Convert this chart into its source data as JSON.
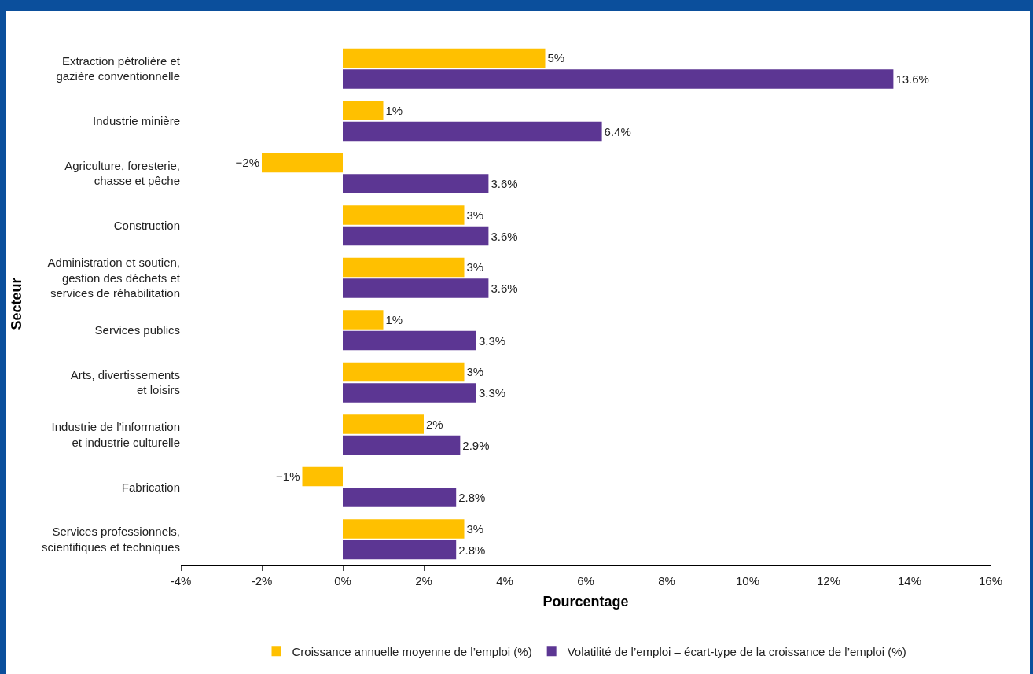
{
  "chart_data": {
    "type": "bar",
    "orientation": "horizontal",
    "xlabel": "Pourcentage",
    "ylabel": "Secteur",
    "categories": [
      "Extraction pétrolière et\ngazière conventionnelle",
      "Industrie minière",
      "Agriculture, foresterie,\nchasse et pêche",
      "Construction",
      "Administration et soutien,\ngestion des déchets et\nservices de réhabilitation",
      "Services publics",
      "Arts, divertissements\net loisirs",
      "Industrie de l’information\net industrie culturelle",
      "Fabrication",
      "Services professionnels,\nscientifiques et techniques"
    ],
    "series": [
      {
        "name": "Croissance annuelle moyenne de l’emploi (%)",
        "color": "#ffc000",
        "values": [
          5,
          1,
          -2,
          3,
          3,
          1,
          3,
          2,
          -1,
          3
        ],
        "value_labels": [
          "5%",
          "1%",
          "−2%",
          "3%",
          "3%",
          "1%",
          "3%",
          "2%",
          "−1%",
          "3%"
        ]
      },
      {
        "name": "Volatilité de l’emploi – écart-type de la croissance de l’emploi (%)",
        "color": "#5c3693",
        "values": [
          13.6,
          6.4,
          3.6,
          3.6,
          3.6,
          3.3,
          3.3,
          2.9,
          2.8,
          2.8
        ],
        "value_labels": [
          "13.6%",
          "6.4%",
          "3.6%",
          "3.6%",
          "3.6%",
          "3.3%",
          "3.3%",
          "2.9%",
          "2.8%",
          "2.8%"
        ]
      }
    ],
    "xlim": [
      -4,
      16
    ],
    "xticks": [
      {
        "value": -4,
        "label": "-4%"
      },
      {
        "value": -2,
        "label": "-2%"
      },
      {
        "value": 0,
        "label": "0%"
      },
      {
        "value": 2,
        "label": "2%"
      },
      {
        "value": 4,
        "label": "4%"
      },
      {
        "value": 6,
        "label": "6%"
      },
      {
        "value": 8,
        "label": "8%"
      },
      {
        "value": 10,
        "label": "10%"
      },
      {
        "value": 12,
        "label": "12%"
      },
      {
        "value": 14,
        "label": "14%"
      },
      {
        "value": 16,
        "label": "16%"
      }
    ],
    "grid": false,
    "legend": "bottom"
  }
}
